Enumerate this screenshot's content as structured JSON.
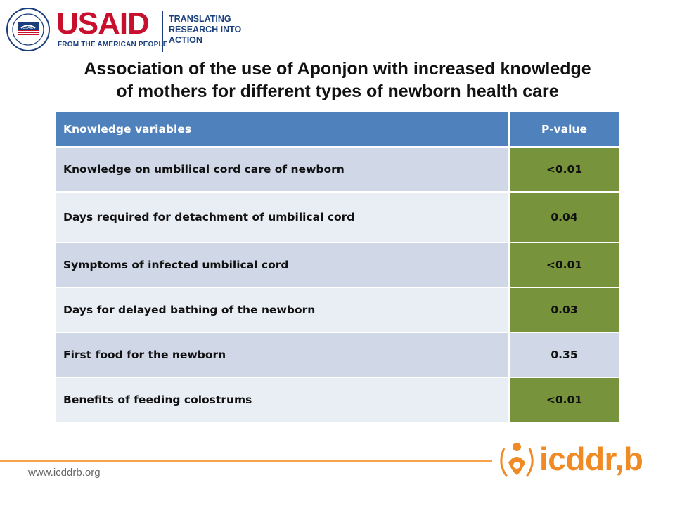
{
  "header": {
    "usaid_logo_text": "USAID",
    "usaid_tagline": "FROM THE AMERICAN PEOPLE",
    "seal_text": "UNITED STATES AGENCY FOR INTERNATIONAL DEVELOPMENT",
    "trta_lines": [
      "TRANSLATING",
      "RESEARCH INTO",
      "ACTION"
    ]
  },
  "title": {
    "line1": "Association of the use of Aponjon with increased knowledge",
    "line2": "of mothers for different types of newborn health care"
  },
  "table": {
    "headers": [
      "Knowledge variables",
      "P-value"
    ],
    "rows": [
      {
        "variable": "Knowledge on umbilical cord care of newborn",
        "p_value": "<0.01"
      },
      {
        "variable": "Days required for detachment of umbilical cord",
        "p_value": "0.04"
      },
      {
        "variable": "Symptoms of infected umbilical cord",
        "p_value": "<0.01"
      },
      {
        "variable": "Days for delayed bathing of the newborn",
        "p_value": "0.03"
      },
      {
        "variable": "First food for the newborn",
        "p_value": "0.35"
      },
      {
        "variable": "Benefits of feeding colostrums",
        "p_value": "<0.01"
      }
    ]
  },
  "footer": {
    "url": "www.icddrb.org",
    "logo_text": "icddr,b"
  },
  "colors": {
    "header_blue": "#4f81bd",
    "significant_green": "#77933c",
    "row_dark": "#d0d8e8",
    "row_light": "#e9edf4",
    "accent_orange": "#f08a24"
  }
}
